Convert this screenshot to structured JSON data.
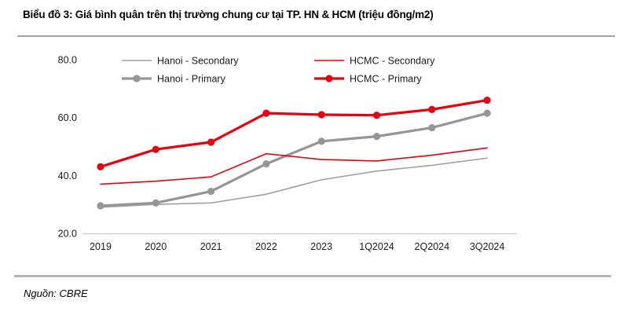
{
  "header": {
    "title": "Biểu đồ 3: Giá bình quân trên thị trường chung cư tại TP. HN & HCM (triệu đồng/m2)"
  },
  "footer": {
    "source": "Nguồn: CBRE"
  },
  "colors": {
    "red": "#e8000d",
    "gray_primary": "#969696",
    "gray_secondary": "#a0a0a0",
    "axis_line": "#c9c9c9"
  },
  "chart_data": {
    "type": "line",
    "title": "Giá bình quân trên thị trường chung cư tại TP. HN & HCM",
    "unit": "triệu đồng/m2",
    "categories": [
      "2019",
      "2020",
      "2021",
      "2022",
      "2023",
      "1Q2024",
      "2Q2024",
      "3Q2024"
    ],
    "series": [
      {
        "name": "Hanoi - Secondary",
        "color": "#a0a0a0",
        "line_width": 1.6,
        "markers": false,
        "values": [
          29.0,
          30.0,
          30.5,
          33.5,
          38.5,
          41.5,
          43.5,
          46.0
        ]
      },
      {
        "name": "Hanoi - Primary",
        "color": "#969696",
        "line_width": 3.2,
        "markers": true,
        "values": [
          29.5,
          30.5,
          34.5,
          44.0,
          51.8,
          53.5,
          56.5,
          61.5
        ]
      },
      {
        "name": "HCMC - Secondary",
        "color": "#e8000d",
        "line_width": 1.6,
        "markers": false,
        "values": [
          37.0,
          38.0,
          39.5,
          47.5,
          45.5,
          45.0,
          47.0,
          49.5
        ]
      },
      {
        "name": "HCMC - Primary",
        "color": "#e8000d",
        "line_width": 3.2,
        "markers": true,
        "values": [
          43.0,
          49.0,
          51.5,
          61.5,
          61.0,
          60.8,
          62.8,
          66.0
        ]
      }
    ],
    "yticks": [
      20.0,
      40.0,
      60.0,
      80.0
    ],
    "ylim": [
      20,
      80
    ],
    "grid": false,
    "legend_position": "top-inside",
    "legend_columns": [
      [
        "Hanoi - Secondary",
        "Hanoi - Primary"
      ],
      [
        "HCMC - Secondary",
        "HCMC - Primary"
      ]
    ]
  }
}
